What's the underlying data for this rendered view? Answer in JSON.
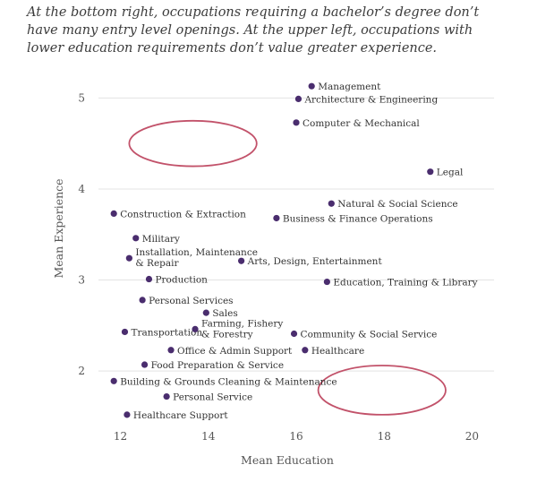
{
  "caption": "At the bottom right, occupations requiring a bachelor’s degree don’t have many entry level openings. At the upper left, occupations with lower education requirements don’t value greater experience.",
  "colors": {
    "dot": "#4a2d6e",
    "ellipse": "#c2526a",
    "grid": "#e3e3e3"
  },
  "chart_data": {
    "type": "scatter",
    "xlabel": "Mean Education",
    "ylabel": "Mean Experience",
    "xlim": [
      11.5,
      20.5
    ],
    "ylim": [
      1.45,
      5.25
    ],
    "xticks": [
      12,
      14,
      16,
      18,
      20
    ],
    "yticks": [
      2,
      3,
      4,
      5
    ],
    "grid": "horizontal",
    "points": [
      {
        "label": "Management",
        "x": 16.35,
        "y": 5.13
      },
      {
        "label": "Architecture & Engineering",
        "x": 16.05,
        "y": 4.99
      },
      {
        "label": "Computer & Mechanical",
        "x": 16.0,
        "y": 4.73
      },
      {
        "label": "Legal",
        "x": 19.05,
        "y": 4.19
      },
      {
        "label": "Natural & Social Science",
        "x": 16.8,
        "y": 3.84
      },
      {
        "label": "Business & Finance Operations",
        "x": 15.55,
        "y": 3.68
      },
      {
        "label": "Construction & Extraction",
        "x": 11.85,
        "y": 3.73
      },
      {
        "label": "Military",
        "x": 12.35,
        "y": 3.46
      },
      {
        "label": "Installation, Maintenance & Repair",
        "x": 12.2,
        "y": 3.24
      },
      {
        "label": "Arts, Design, Entertainment",
        "x": 14.75,
        "y": 3.21
      },
      {
        "label": "Production",
        "x": 12.65,
        "y": 3.01
      },
      {
        "label": "Education, Training & Library",
        "x": 16.7,
        "y": 2.98
      },
      {
        "label": "Personal Services",
        "x": 12.5,
        "y": 2.78
      },
      {
        "label": "Sales",
        "x": 13.95,
        "y": 2.64
      },
      {
        "label": "Transportation",
        "x": 12.1,
        "y": 2.43
      },
      {
        "label": "Farming, Fishery & Forestry",
        "x": 13.7,
        "y": 2.46
      },
      {
        "label": "Community & Social Service",
        "x": 15.95,
        "y": 2.41
      },
      {
        "label": "Office & Admin Support",
        "x": 13.15,
        "y": 2.23
      },
      {
        "label": "Healthcare",
        "x": 16.2,
        "y": 2.23
      },
      {
        "label": "Food Preparation & Service",
        "x": 12.55,
        "y": 2.07
      },
      {
        "label": "Building & Grounds Cleaning & Maintenance",
        "x": 11.85,
        "y": 1.89
      },
      {
        "label": "Personal Service",
        "x": 13.05,
        "y": 1.72
      },
      {
        "label": "Healthcare Support",
        "x": 12.15,
        "y": 1.52
      }
    ],
    "annotations": [
      {
        "type": "ellipse",
        "cx": 13.65,
        "cy": 4.5,
        "rx": 1.45,
        "ry": 0.25
      },
      {
        "type": "ellipse",
        "cx": 17.95,
        "cy": 1.79,
        "rx": 1.45,
        "ry": 0.27
      }
    ]
  }
}
